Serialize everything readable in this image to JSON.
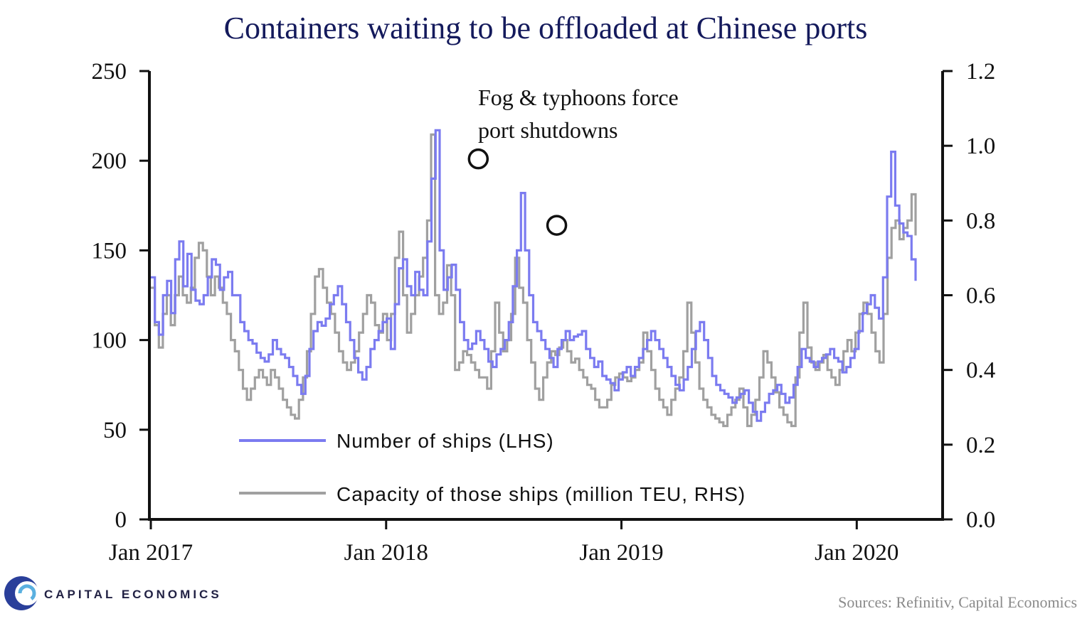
{
  "chart_data": {
    "type": "line",
    "title": "Containers waiting to be offloaded at Chinese ports",
    "x_ticks": [
      "Jan 2017",
      "Jan 2018",
      "Jan 2019",
      "Jan 2020"
    ],
    "x_start": "2017-01",
    "x_end": "2020-04",
    "left_axis": {
      "ylim": [
        0,
        250
      ],
      "ticks": [
        "0",
        "50",
        "100",
        "150",
        "200",
        "250"
      ]
    },
    "right_axis": {
      "ylim": [
        0.0,
        1.2
      ],
      "ticks": [
        "0.0",
        "0.2",
        "0.4",
        "0.6",
        "0.8",
        "1.0",
        "1.2"
      ]
    },
    "series": [
      {
        "name": "Number of ships (LHS)",
        "axis": "left",
        "color": "#7b7bf0",
        "values": [
          135,
          110,
          103,
          125,
          133,
          115,
          145,
          155,
          130,
          148,
          128,
          122,
          120,
          125,
          135,
          145,
          142,
          128,
          135,
          138,
          125,
          125,
          110,
          105,
          100,
          98,
          93,
          90,
          88,
          92,
          100,
          95,
          92,
          90,
          85,
          80,
          75,
          70,
          80,
          95,
          105,
          110,
          108,
          112,
          120,
          125,
          130,
          120,
          110,
          100,
          90,
          82,
          78,
          85,
          95,
          100,
          105,
          110,
          112,
          95,
          120,
          140,
          145,
          130,
          125,
          138,
          128,
          125,
          155,
          190,
          217,
          150,
          128,
          135,
          142,
          128,
          110,
          100,
          95,
          98,
          105,
          100,
          95,
          88,
          85,
          92,
          95,
          100,
          110,
          130,
          150,
          182,
          150,
          125,
          110,
          105,
          100,
          95,
          90,
          85,
          95,
          100,
          105,
          100,
          102,
          103,
          105,
          95,
          90,
          85,
          88,
          80,
          78,
          76,
          72,
          78,
          82,
          85,
          80,
          85,
          90,
          95,
          100,
          105,
          100,
          95,
          90,
          85,
          80,
          75,
          72,
          78,
          85,
          95,
          105,
          110,
          100,
          90,
          80,
          75,
          72,
          70,
          68,
          65,
          68,
          70,
          72,
          65,
          60,
          55,
          60,
          65,
          70,
          72,
          75,
          70,
          65,
          68,
          75,
          85,
          95,
          90,
          88,
          85,
          88,
          90,
          92,
          95,
          90,
          88,
          82,
          85,
          90,
          95,
          105,
          115,
          120,
          125,
          118,
          112,
          135,
          180,
          205,
          175,
          165,
          160,
          158,
          145,
          133
        ]
      },
      {
        "name": "Capacity of those ships (million TEU, RHS)",
        "axis": "right",
        "color": "#a0a0a0",
        "values": [
          0.62,
          0.52,
          0.46,
          0.55,
          0.6,
          0.52,
          0.6,
          0.65,
          0.6,
          0.58,
          0.62,
          0.7,
          0.74,
          0.72,
          0.65,
          0.6,
          0.65,
          0.62,
          0.58,
          0.55,
          0.48,
          0.45,
          0.4,
          0.35,
          0.32,
          0.35,
          0.38,
          0.4,
          0.38,
          0.36,
          0.4,
          0.38,
          0.35,
          0.32,
          0.3,
          0.28,
          0.27,
          0.32,
          0.38,
          0.45,
          0.55,
          0.65,
          0.67,
          0.62,
          0.58,
          0.55,
          0.5,
          0.45,
          0.42,
          0.4,
          0.42,
          0.45,
          0.5,
          0.55,
          0.6,
          0.58,
          0.52,
          0.5,
          0.55,
          0.48,
          0.55,
          0.7,
          0.77,
          0.6,
          0.5,
          0.55,
          0.6,
          0.65,
          0.7,
          0.8,
          1.03,
          0.6,
          0.55,
          0.58,
          0.68,
          0.6,
          0.4,
          0.42,
          0.45,
          0.44,
          0.42,
          0.4,
          0.38,
          0.38,
          0.35,
          0.45,
          0.58,
          0.5,
          0.45,
          0.48,
          0.55,
          0.7,
          0.62,
          0.58,
          0.48,
          0.42,
          0.35,
          0.32,
          0.38,
          0.42,
          0.45,
          0.44,
          0.46,
          0.48,
          0.45,
          0.42,
          0.43,
          0.4,
          0.38,
          0.36,
          0.35,
          0.32,
          0.3,
          0.3,
          0.32,
          0.36,
          0.38,
          0.39,
          0.38,
          0.37,
          0.38,
          0.4,
          0.42,
          0.5,
          0.45,
          0.4,
          0.35,
          0.32,
          0.3,
          0.28,
          0.32,
          0.35,
          0.38,
          0.45,
          0.58,
          0.5,
          0.42,
          0.35,
          0.32,
          0.3,
          0.28,
          0.27,
          0.26,
          0.25,
          0.28,
          0.3,
          0.32,
          0.35,
          0.3,
          0.25,
          0.28,
          0.32,
          0.38,
          0.45,
          0.42,
          0.38,
          0.34,
          0.3,
          0.28,
          0.26,
          0.25,
          0.38,
          0.5,
          0.58,
          0.46,
          0.42,
          0.4,
          0.42,
          0.44,
          0.4,
          0.38,
          0.36,
          0.4,
          0.45,
          0.48,
          0.45,
          0.5,
          0.55,
          0.58,
          0.55,
          0.5,
          0.45,
          0.42,
          0.55,
          0.7,
          0.78,
          0.8,
          0.75,
          0.78,
          0.8,
          0.87,
          0.76
        ]
      }
    ],
    "annotations": [
      {
        "text_lines": [
          "Fog & typhoons force",
          "port shutdowns"
        ]
      }
    ],
    "highlights": [
      {
        "date": "2018-05",
        "value": 201
      },
      {
        "date": "2018-09",
        "value": 164
      }
    ],
    "legend_position": "bottom-left",
    "grid": false
  },
  "branding": {
    "logo_text": "CAPITAL ECONOMICS"
  },
  "source": "Sources: Refinitiv, Capital Economics"
}
